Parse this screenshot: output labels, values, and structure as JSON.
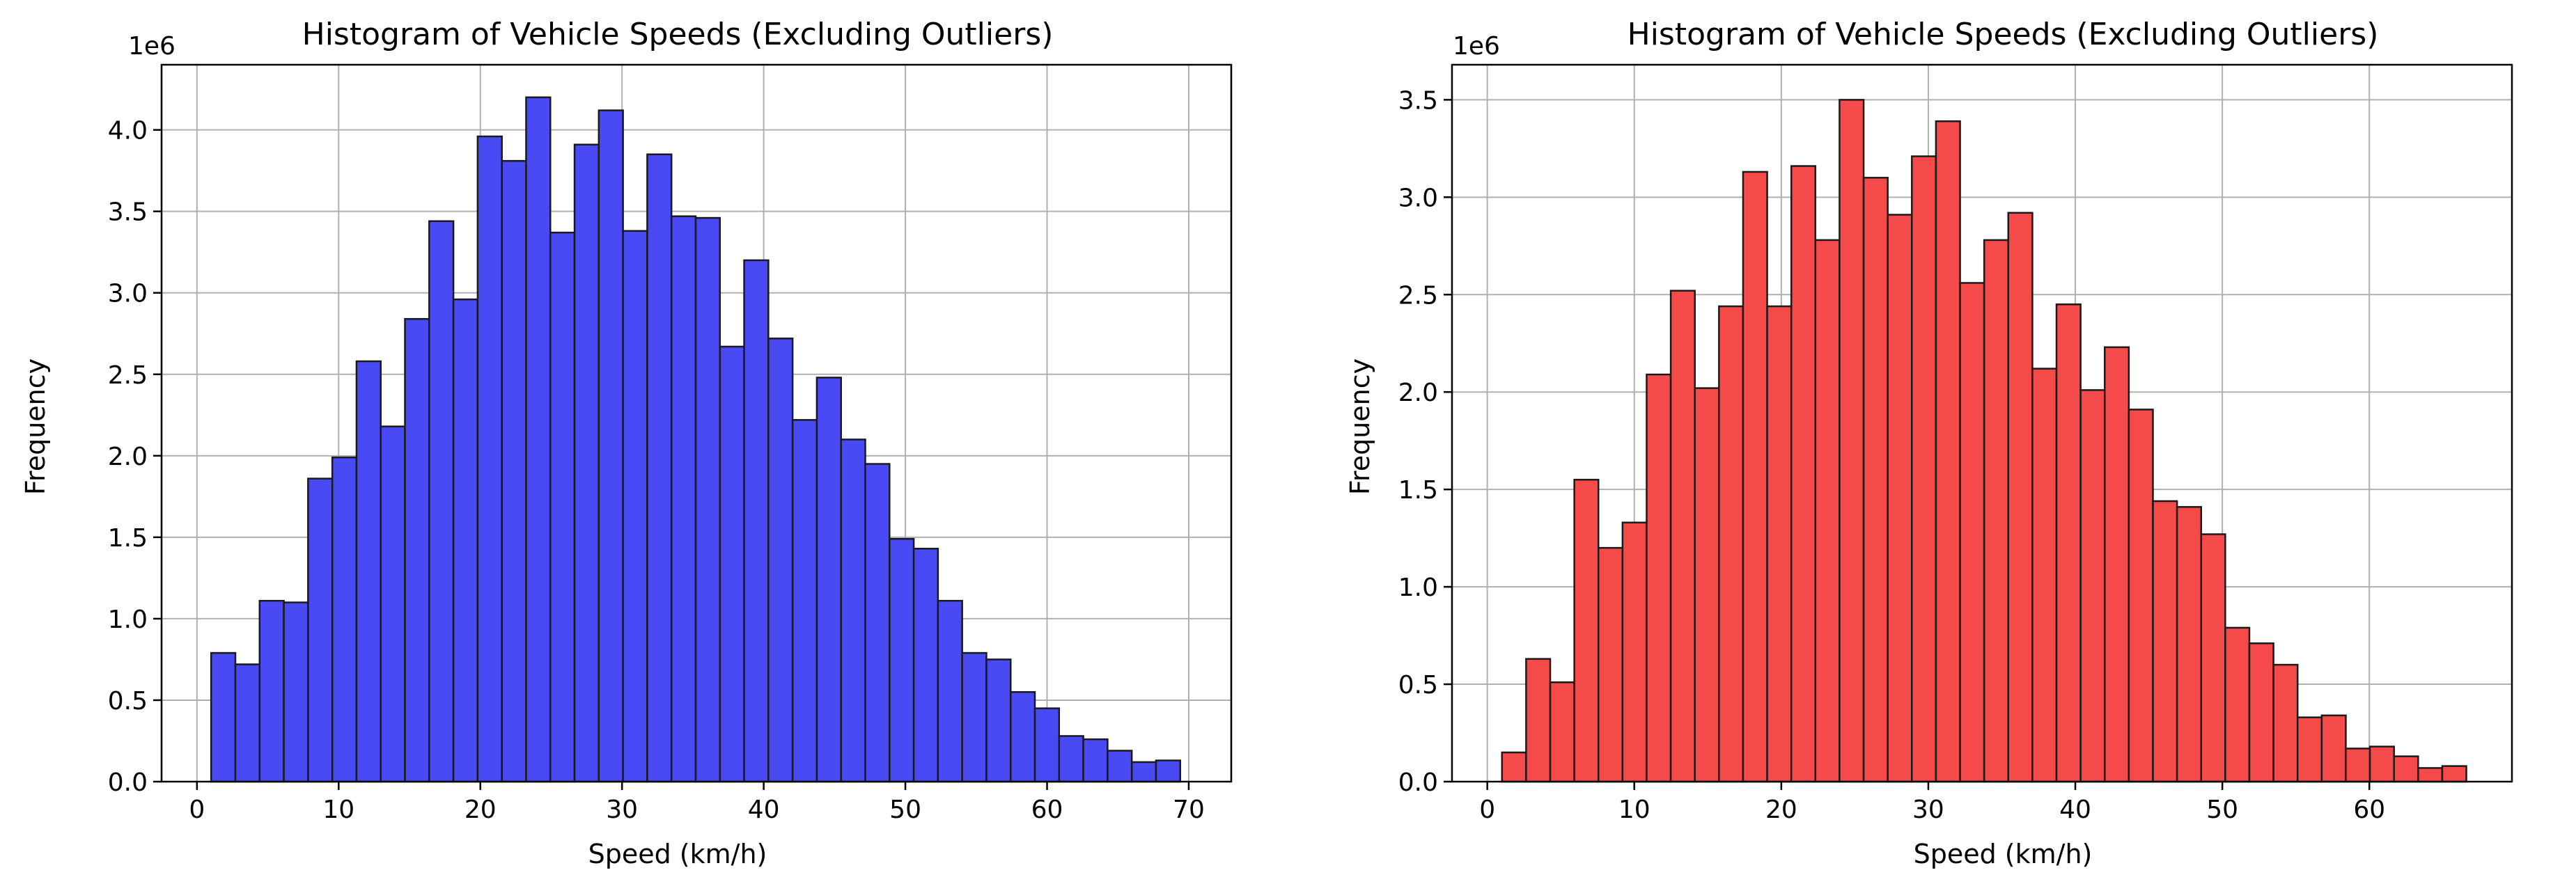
{
  "chart_data": [
    {
      "type": "bar",
      "title": "Histogram of Vehicle Speeds (Excluding Outliers)",
      "xlabel": "Speed (km/h)",
      "ylabel": "Frequency",
      "y_offset_label": "1e6",
      "xlim": [
        -2.5,
        73
      ],
      "ylim": [
        0,
        4.4
      ],
      "xticks": [
        "0",
        "10",
        "20",
        "30",
        "40",
        "50",
        "60",
        "70"
      ],
      "xtick_values": [
        0,
        10,
        20,
        30,
        40,
        50,
        60,
        70
      ],
      "yticks": [
        "0.0",
        "0.5",
        "1.0",
        "1.5",
        "2.0",
        "2.5",
        "3.0",
        "3.5",
        "4.0"
      ],
      "ytick_values": [
        0,
        0.5,
        1.0,
        1.5,
        2.0,
        2.5,
        3.0,
        3.5,
        4.0
      ],
      "bin_start": 1.0,
      "bin_width": 1.71,
      "values": [
        0.79,
        0.72,
        1.11,
        1.1,
        1.86,
        1.99,
        2.58,
        2.18,
        2.84,
        3.44,
        2.96,
        3.96,
        3.81,
        4.2,
        3.37,
        3.91,
        4.12,
        3.38,
        3.85,
        3.47,
        3.46,
        2.67,
        3.2,
        2.72,
        2.22,
        2.48,
        2.1,
        1.95,
        1.49,
        1.43,
        1.11,
        0.79,
        0.75,
        0.55,
        0.45,
        0.28,
        0.26,
        0.19,
        0.12,
        0.13
      ],
      "color": "#4a4af5",
      "edge_color": "#1a1a1a",
      "grid": true
    },
    {
      "type": "bar",
      "title": "Histogram of Vehicle Speeds (Excluding Outliers)",
      "xlabel": "Speed (km/h)",
      "ylabel": "Frequency",
      "y_offset_label": "1e6",
      "xlim": [
        -2.4,
        69.7
      ],
      "ylim": [
        0,
        3.68
      ],
      "xticks": [
        "0",
        "10",
        "20",
        "30",
        "40",
        "50",
        "60"
      ],
      "xtick_values": [
        0,
        10,
        20,
        30,
        40,
        50,
        60
      ],
      "yticks": [
        "0.0",
        "0.5",
        "1.0",
        "1.5",
        "2.0",
        "2.5",
        "3.0",
        "3.5"
      ],
      "ytick_values": [
        0,
        0.5,
        1.0,
        1.5,
        2.0,
        2.5,
        3.0,
        3.5
      ],
      "bin_start": 1.0,
      "bin_width": 1.64,
      "values": [
        0.15,
        0.63,
        0.51,
        1.55,
        1.2,
        1.33,
        2.09,
        2.52,
        2.02,
        2.44,
        3.13,
        2.44,
        3.16,
        2.78,
        3.5,
        3.1,
        2.91,
        3.21,
        3.39,
        2.56,
        2.78,
        2.92,
        2.12,
        2.45,
        2.01,
        2.23,
        1.91,
        1.44,
        1.41,
        1.27,
        0.79,
        0.71,
        0.6,
        0.33,
        0.34,
        0.17,
        0.18,
        0.13,
        0.07,
        0.08
      ],
      "color": "#f54a4a",
      "edge_color": "#1a1a1a",
      "grid": true
    }
  ]
}
